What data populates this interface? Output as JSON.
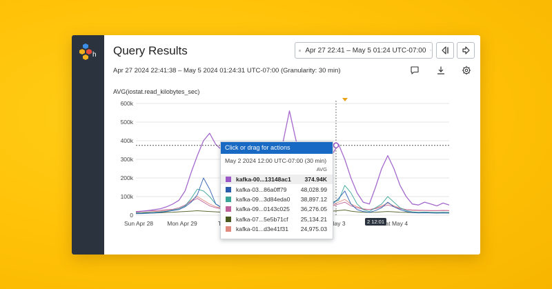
{
  "header": {
    "title": "Query Results",
    "range_button": "Apr 27 22:41 – May 5 01:24 UTC-07:00",
    "subtitle": "Apr 27 2024 22:41:38 – May 5 2024 01:24:31 UTC-07:00 (Granularity: 30 min)"
  },
  "icons": {
    "logo": "hexagon-logo-icon",
    "clock": "clock-icon",
    "prev": "step-back-icon",
    "next": "step-forward-icon",
    "comment": "comment-icon",
    "download": "download-icon",
    "settings": "gear-icon"
  },
  "colors": {
    "sidebar": "#2a333e",
    "accent": "#1769c3",
    "background": "#ffc107",
    "series_purple": "#9b59c8",
    "marker": "#e8a317"
  },
  "chart_data": {
    "type": "line",
    "title": "AVG(iostat.read_kilobytes_sec)",
    "y_ticks": [
      "600k",
      "500k",
      "400k",
      "300k",
      "200k",
      "100k",
      "0"
    ],
    "x_ticks": [
      "Sun Apr 28",
      "Mon Apr 29",
      "Tue",
      "May 3",
      "Sat May 4"
    ],
    "ylim": [
      0,
      600000
    ],
    "grid": true,
    "threshold": 374940,
    "hover_x_label": "2 12:01",
    "series": [
      {
        "name": "kafka-00...13148ac1",
        "color": "#9b59c8",
        "values": [
          18000,
          22000,
          25000,
          30000,
          35000,
          45000,
          60000,
          80000,
          130000,
          230000,
          320000,
          400000,
          440000,
          380000,
          350000,
          260000,
          150000,
          80000,
          60000,
          55000,
          50000,
          55000,
          60000,
          250000,
          400000,
          560000,
          410000,
          280000,
          160000,
          120000,
          140000,
          240000,
          330000,
          380000,
          300000,
          200000,
          120000,
          70000,
          60000,
          150000,
          250000,
          320000,
          250000,
          160000,
          100000,
          60000,
          55000,
          70000,
          60000,
          50000,
          65000,
          55000
        ]
      },
      {
        "name": "kafka-03...86a0ff79",
        "color": "#2a5db0",
        "values": [
          8000,
          9000,
          10000,
          12000,
          15000,
          20000,
          25000,
          30000,
          45000,
          70000,
          110000,
          200000,
          140000,
          60000,
          40000,
          30000,
          22000,
          18000,
          15000,
          14000,
          15000,
          16000,
          20000,
          60000,
          120000,
          220000,
          110000,
          60000,
          35000,
          30000,
          32000,
          45000,
          60000,
          90000,
          130000,
          60000,
          30000,
          20000,
          15000,
          25000,
          40000,
          70000,
          45000,
          30000,
          20000,
          14000,
          12000,
          13000,
          12000,
          11000,
          12000,
          11000
        ]
      },
      {
        "name": "kafka-09...3d84eda0",
        "color": "#3aa39a",
        "values": [
          12000,
          13000,
          15000,
          16000,
          18000,
          22000,
          28000,
          35000,
          50000,
          90000,
          140000,
          130000,
          100000,
          60000,
          40000,
          30000,
          25000,
          20000,
          18000,
          18000,
          17000,
          18000,
          22000,
          70000,
          140000,
          180000,
          120000,
          70000,
          40000,
          32000,
          34000,
          50000,
          70000,
          80000,
          160000,
          120000,
          60000,
          30000,
          20000,
          40000,
          60000,
          100000,
          70000,
          40000,
          25000,
          18000,
          16000,
          17000,
          16000,
          15000,
          16000,
          15000
        ]
      },
      {
        "name": "kafka-09...0143c025",
        "color": "#c0609a",
        "values": [
          20000,
          22000,
          25000,
          24000,
          26000,
          30000,
          32000,
          40000,
          55000,
          75000,
          90000,
          70000,
          50000,
          40000,
          35000,
          30000,
          28000,
          26000,
          25000,
          25000,
          26000,
          27000,
          30000,
          45000,
          60000,
          80000,
          60000,
          45000,
          35000,
          32000,
          33000,
          40000,
          50000,
          60000,
          70000,
          50000,
          40000,
          32000,
          30000,
          35000,
          45000,
          55000,
          45000,
          35000,
          30000,
          28000,
          27000,
          26000,
          25000,
          25000,
          26000,
          25000
        ]
      },
      {
        "name": "kafka-07...5e5b71cf",
        "color": "#4a5a1e",
        "values": [
          10000,
          11000,
          12000,
          12000,
          13000,
          15000,
          16000,
          18000,
          20000,
          22000,
          24000,
          22000,
          20000,
          18000,
          16000,
          15000,
          14000,
          13000,
          13000,
          13000,
          14000,
          14000,
          15000,
          20000,
          25000,
          28000,
          24000,
          20000,
          18000,
          17000,
          18000,
          20000,
          22000,
          25000,
          28000,
          22000,
          18000,
          16000,
          15000,
          16000,
          18000,
          20000,
          18000,
          16000,
          15000,
          14000,
          14000,
          13000,
          13000,
          13000,
          14000,
          13000
        ]
      },
      {
        "name": "kafka-01...d3e41f31",
        "color": "#e0897f",
        "values": [
          15000,
          16000,
          18000,
          20000,
          22000,
          25000,
          28000,
          35000,
          50000,
          80000,
          100000,
          80000,
          60000,
          45000,
          38000,
          32000,
          28000,
          25000,
          24000,
          24000,
          25000,
          26000,
          28000,
          50000,
          70000,
          90000,
          70000,
          50000,
          38000,
          34000,
          35000,
          45000,
          55000,
          70000,
          85000,
          60000,
          45000,
          35000,
          30000,
          38000,
          50000,
          65000,
          50000,
          38000,
          30000,
          26000,
          25000,
          25000,
          24000,
          24000,
          25000,
          24000
        ]
      }
    ]
  },
  "tooltip": {
    "header": "Click or drag for actions",
    "date": "May 2 2024 12:00 UTC-07:00 (30 min)",
    "column": "AVG",
    "rows": [
      {
        "name": "kafka-00...13148ac1",
        "value": "374.94K",
        "color": "#9b59c8"
      },
      {
        "name": "kafka-03...86a0ff79",
        "value": "48,028.99",
        "color": "#2a5db0"
      },
      {
        "name": "kafka-09...3d84eda0",
        "value": "38,897.12",
        "color": "#3aa39a"
      },
      {
        "name": "kafka-09...0143c025",
        "value": "36,276.05",
        "color": "#c0609a"
      },
      {
        "name": "kafka-07...5e5b71cf",
        "value": "25,134.21",
        "color": "#4a5a1e"
      },
      {
        "name": "kafka-01...d3e41f31",
        "value": "24,975.03",
        "color": "#e0897f"
      }
    ]
  }
}
